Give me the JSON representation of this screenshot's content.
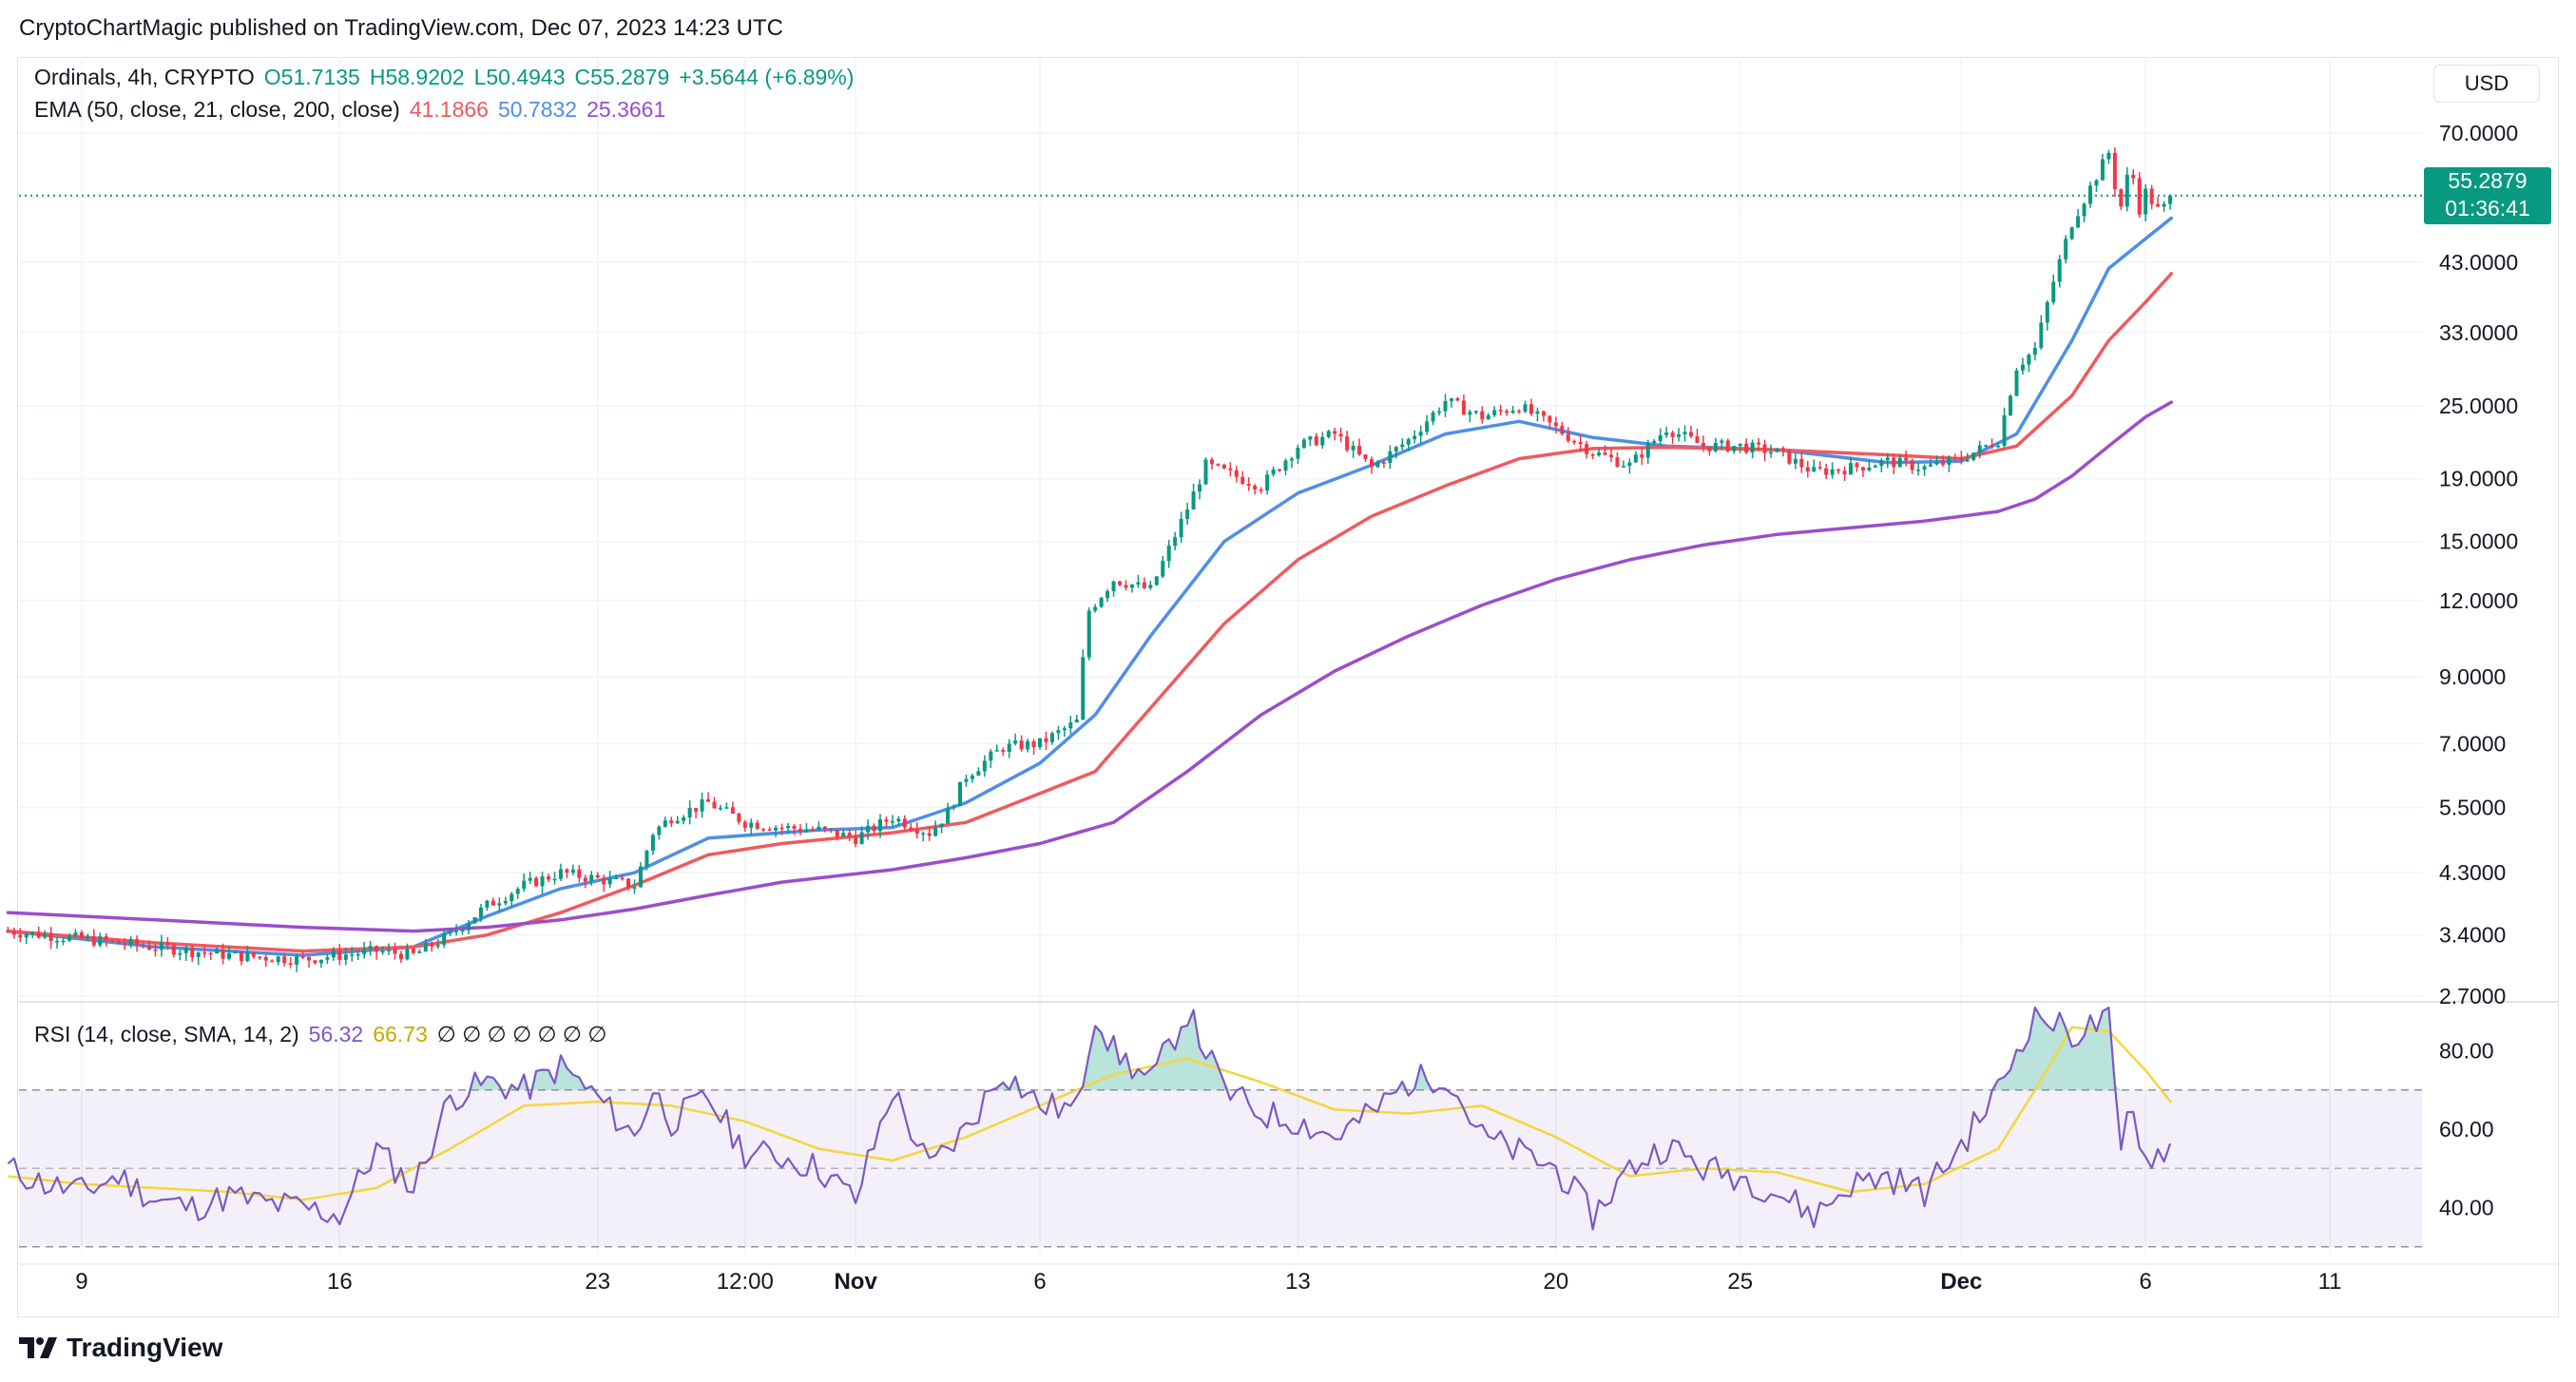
{
  "header": {
    "published_text": "CryptoChartMagic published on TradingView.com, Dec 07, 2023 14:23 UTC"
  },
  "legend": {
    "symbol": "Ordinals, 4h, CRYPTO",
    "open": "O51.7135",
    "high": "H58.9202",
    "low": "L50.4943",
    "close": "C55.2879",
    "change": "+3.5644 (+6.89%)",
    "ema_label": "EMA (50, close, 21, close, 200, close)",
    "ema50": "41.1866",
    "ema21": "50.7832",
    "ema200": "25.3661",
    "rsi_label": "RSI (14, close, SMA, 14, 2)",
    "rsi_value": "56.32",
    "rsi_sma": "66.73",
    "rsi_extras": "∅ ∅ ∅ ∅ ∅ ∅ ∅"
  },
  "toolbar": {
    "currency": "USD"
  },
  "badge": {
    "price": "55.2879",
    "countdown": "01:36:41"
  },
  "footer": {
    "brand": "TradingView"
  },
  "colors": {
    "up": "#089981",
    "down": "#f23645",
    "ema21": "#4f8ee8",
    "ema50": "#ef5a5f",
    "ema200": "#9c4dcc",
    "rsi": "#7e57c2",
    "rsi_sma": "#f5d63d",
    "last_price_line": "#089981"
  },
  "chart_data": [
    {
      "type": "candlestick",
      "scale": "log",
      "timeframe": "4h",
      "price_ticks": [
        70.0,
        55.0,
        43.0,
        33.0,
        25.0,
        19.0,
        15.0,
        12.0,
        9.0,
        7.0,
        5.5,
        4.3,
        3.4,
        2.7
      ],
      "price_tick_labels": [
        "70.0000",
        "",
        "43.0000",
        "33.0000",
        "25.0000",
        "19.0000",
        "15.0000",
        "12.0000",
        "9.0000",
        "7.0000",
        "5.5000",
        "4.3000",
        "3.4000",
        "2.7000"
      ],
      "ylim": [
        2.7,
        80
      ],
      "x_ticks": [
        {
          "label": "9",
          "t": 2
        },
        {
          "label": "16",
          "t": 9
        },
        {
          "label": "23",
          "t": 16
        },
        {
          "label": "12:00",
          "t": 20
        },
        {
          "label": "Nov",
          "t": 23,
          "bold": true
        },
        {
          "label": "6",
          "t": 28
        },
        {
          "label": "13",
          "t": 35
        },
        {
          "label": "20",
          "t": 42
        },
        {
          "label": "25",
          "t": 47
        },
        {
          "label": "Dec",
          "t": 53,
          "bold": true
        },
        {
          "label": "6",
          "t": 58
        },
        {
          "label": "11",
          "t": 63
        }
      ],
      "x_range_days": [
        0.3,
        65.5
      ],
      "last_price": 55.2879,
      "price_path": [
        [
          0,
          3.45
        ],
        [
          2,
          3.35
        ],
        [
          4,
          3.25
        ],
        [
          6,
          3.15
        ],
        [
          8,
          3.1
        ],
        [
          9,
          3.15
        ],
        [
          10,
          3.2
        ],
        [
          11,
          3.15
        ],
        [
          12,
          3.4
        ],
        [
          13,
          3.8
        ],
        [
          14,
          4.1
        ],
        [
          15,
          4.3
        ],
        [
          16,
          4.2
        ],
        [
          17,
          4.1
        ],
        [
          17.5,
          5.0
        ],
        [
          18,
          5.3
        ],
        [
          19,
          5.6
        ],
        [
          20,
          5.2
        ],
        [
          21,
          5.1
        ],
        [
          22,
          5.05
        ],
        [
          23,
          4.9
        ],
        [
          24,
          5.3
        ],
        [
          25,
          5.0
        ],
        [
          25.5,
          5.4
        ],
        [
          26,
          6.2
        ],
        [
          27,
          6.9
        ],
        [
          28,
          7.0
        ],
        [
          29,
          7.6
        ],
        [
          29.3,
          11.5
        ],
        [
          30,
          13.0
        ],
        [
          31,
          12.5
        ],
        [
          32,
          17.0
        ],
        [
          32.5,
          20.0
        ],
        [
          33,
          19.5
        ],
        [
          34,
          18.5
        ],
        [
          35,
          21.5
        ],
        [
          36,
          22.5
        ],
        [
          37,
          19.8
        ],
        [
          38,
          22.0
        ],
        [
          39,
          25.5
        ],
        [
          40,
          24.0
        ],
        [
          41,
          25.0
        ],
        [
          42,
          23.0
        ],
        [
          43,
          21.0
        ],
        [
          44,
          20.0
        ],
        [
          45,
          23.0
        ],
        [
          46,
          21.5
        ],
        [
          47,
          21.5
        ],
        [
          48,
          21.0
        ],
        [
          49,
          19.5
        ],
        [
          50,
          19.8
        ],
        [
          51,
          20.3
        ],
        [
          52,
          19.8
        ],
        [
          53,
          20.5
        ],
        [
          54,
          22.0
        ],
        [
          54.5,
          29.0
        ],
        [
          55,
          31.0
        ],
        [
          55.5,
          40.0
        ],
        [
          56,
          50.0
        ],
        [
          56.5,
          57.0
        ],
        [
          57,
          65.0
        ],
        [
          57.3,
          52.0
        ],
        [
          57.6,
          63.0
        ],
        [
          57.8,
          52.0
        ],
        [
          58,
          56.0
        ],
        [
          58.4,
          51.7
        ],
        [
          58.7,
          55.29
        ]
      ],
      "series": [
        {
          "name": "EMA 21",
          "color": "#4f8ee8",
          "points": [
            [
              0,
              3.45
            ],
            [
              4,
              3.25
            ],
            [
              8,
              3.15
            ],
            [
              11,
              3.25
            ],
            [
              13,
              3.65
            ],
            [
              15,
              4.05
            ],
            [
              17,
              4.3
            ],
            [
              19,
              4.9
            ],
            [
              22,
              5.05
            ],
            [
              24,
              5.1
            ],
            [
              26,
              5.6
            ],
            [
              28,
              6.5
            ],
            [
              29.5,
              7.8
            ],
            [
              31,
              10.5
            ],
            [
              33,
              15.0
            ],
            [
              35,
              18.0
            ],
            [
              37,
              20.0
            ],
            [
              39,
              22.5
            ],
            [
              41,
              23.6
            ],
            [
              43,
              22.2
            ],
            [
              45,
              21.5
            ],
            [
              48,
              21.2
            ],
            [
              51,
              20.2
            ],
            [
              53,
              20.3
            ],
            [
              54.5,
              22.5
            ],
            [
              56,
              32.0
            ],
            [
              57,
              42.0
            ],
            [
              58,
              47.0
            ],
            [
              58.7,
              50.78
            ]
          ]
        },
        {
          "name": "EMA 50",
          "color": "#ef5a5f",
          "points": [
            [
              0,
              3.45
            ],
            [
              4,
              3.3
            ],
            [
              8,
              3.2
            ],
            [
              11,
              3.25
            ],
            [
              13,
              3.4
            ],
            [
              15,
              3.7
            ],
            [
              17,
              4.1
            ],
            [
              19,
              4.6
            ],
            [
              21,
              4.8
            ],
            [
              24,
              5.0
            ],
            [
              26,
              5.2
            ],
            [
              28,
              5.8
            ],
            [
              29.5,
              6.3
            ],
            [
              31,
              8.0
            ],
            [
              33,
              11.0
            ],
            [
              35,
              14.0
            ],
            [
              37,
              16.5
            ],
            [
              39,
              18.5
            ],
            [
              41,
              20.5
            ],
            [
              43,
              21.3
            ],
            [
              45,
              21.4
            ],
            [
              48,
              21.2
            ],
            [
              51,
              20.8
            ],
            [
              53,
              20.5
            ],
            [
              54.5,
              21.5
            ],
            [
              56,
              26.0
            ],
            [
              57,
              32.0
            ],
            [
              58,
              37.0
            ],
            [
              58.7,
              41.19
            ]
          ]
        },
        {
          "name": "EMA 200",
          "color": "#9c4dcc",
          "points": [
            [
              0,
              3.7
            ],
            [
              4,
              3.6
            ],
            [
              8,
              3.5
            ],
            [
              11,
              3.45
            ],
            [
              13,
              3.5
            ],
            [
              15,
              3.6
            ],
            [
              17,
              3.75
            ],
            [
              19,
              3.95
            ],
            [
              21,
              4.15
            ],
            [
              24,
              4.35
            ],
            [
              26,
              4.55
            ],
            [
              28,
              4.8
            ],
            [
              30,
              5.2
            ],
            [
              32,
              6.3
            ],
            [
              34,
              7.8
            ],
            [
              36,
              9.2
            ],
            [
              38,
              10.5
            ],
            [
              40,
              11.8
            ],
            [
              42,
              13.0
            ],
            [
              44,
              14.0
            ],
            [
              46,
              14.8
            ],
            [
              48,
              15.4
            ],
            [
              50,
              15.8
            ],
            [
              52,
              16.2
            ],
            [
              54,
              16.8
            ],
            [
              55,
              17.6
            ],
            [
              56,
              19.2
            ],
            [
              57,
              21.5
            ],
            [
              58,
              24.0
            ],
            [
              58.7,
              25.37
            ]
          ]
        }
      ]
    },
    {
      "type": "line",
      "name": "RSI (14, close, SMA, 14, 2)",
      "ylim": [
        28,
        92
      ],
      "y_ticks": [
        80.0,
        60.0,
        40.0
      ],
      "y_tick_labels": [
        "80.00",
        "60.00",
        "40.00"
      ],
      "bands": {
        "upper": 70,
        "middle": 50,
        "lower": 30
      },
      "series": [
        {
          "name": "RSI",
          "color": "#7e57c2",
          "points": [
            [
              0,
              50
            ],
            [
              1,
              46
            ],
            [
              2,
              44
            ],
            [
              3,
              48
            ],
            [
              4,
              42
            ],
            [
              5,
              40
            ],
            [
              6,
              43
            ],
            [
              7,
              41
            ],
            [
              8,
              40
            ],
            [
              9,
              38
            ],
            [
              10,
              55
            ],
            [
              11,
              45
            ],
            [
              12,
              68
            ],
            [
              13,
              72
            ],
            [
              14,
              70
            ],
            [
              15,
              76
            ],
            [
              16,
              68
            ],
            [
              17,
              58
            ],
            [
              17.5,
              70
            ],
            [
              18,
              62
            ],
            [
              19,
              68
            ],
            [
              20,
              54
            ],
            [
              21,
              53
            ],
            [
              22,
              50
            ],
            [
              23,
              42
            ],
            [
              24,
              70
            ],
            [
              25,
              50
            ],
            [
              26,
              60
            ],
            [
              27,
              75
            ],
            [
              28,
              66
            ],
            [
              29,
              65
            ],
            [
              29.5,
              90
            ],
            [
              30,
              80
            ],
            [
              31,
              72
            ],
            [
              32,
              90
            ],
            [
              33,
              70
            ],
            [
              34,
              64
            ],
            [
              35,
              62
            ],
            [
              36,
              58
            ],
            [
              37,
              64
            ],
            [
              38,
              72
            ],
            [
              39,
              74
            ],
            [
              40,
              58
            ],
            [
              41,
              54
            ],
            [
              42,
              50
            ],
            [
              43,
              38
            ],
            [
              44,
              50
            ],
            [
              45,
              56
            ],
            [
              46,
              50
            ],
            [
              47,
              48
            ],
            [
              48,
              44
            ],
            [
              49,
              38
            ],
            [
              50,
              46
            ],
            [
              51,
              48
            ],
            [
              52,
              44
            ],
            [
              53,
              56
            ],
            [
              54,
              70
            ],
            [
              55,
              90
            ],
            [
              56,
              84
            ],
            [
              57,
              88
            ],
            [
              57.3,
              52
            ],
            [
              57.6,
              68
            ],
            [
              58,
              52
            ],
            [
              58.7,
              56.32
            ]
          ]
        },
        {
          "name": "RSI SMA",
          "color": "#f5d63d",
          "points": [
            [
              0,
              48
            ],
            [
              2,
              46
            ],
            [
              4,
              45
            ],
            [
              6,
              44
            ],
            [
              8,
              42
            ],
            [
              10,
              45
            ],
            [
              12,
              55
            ],
            [
              14,
              66
            ],
            [
              16,
              67
            ],
            [
              18,
              66
            ],
            [
              20,
              62
            ],
            [
              22,
              55
            ],
            [
              24,
              52
            ],
            [
              26,
              58
            ],
            [
              28,
              66
            ],
            [
              30,
              74
            ],
            [
              32,
              78
            ],
            [
              34,
              72
            ],
            [
              36,
              65
            ],
            [
              38,
              64
            ],
            [
              40,
              66
            ],
            [
              42,
              58
            ],
            [
              44,
              48
            ],
            [
              46,
              50
            ],
            [
              48,
              49
            ],
            [
              50,
              44
            ],
            [
              52,
              46
            ],
            [
              54,
              55
            ],
            [
              55,
              70
            ],
            [
              56,
              86
            ],
            [
              57,
              85
            ],
            [
              58,
              75
            ],
            [
              58.7,
              66.73
            ]
          ]
        }
      ]
    }
  ]
}
